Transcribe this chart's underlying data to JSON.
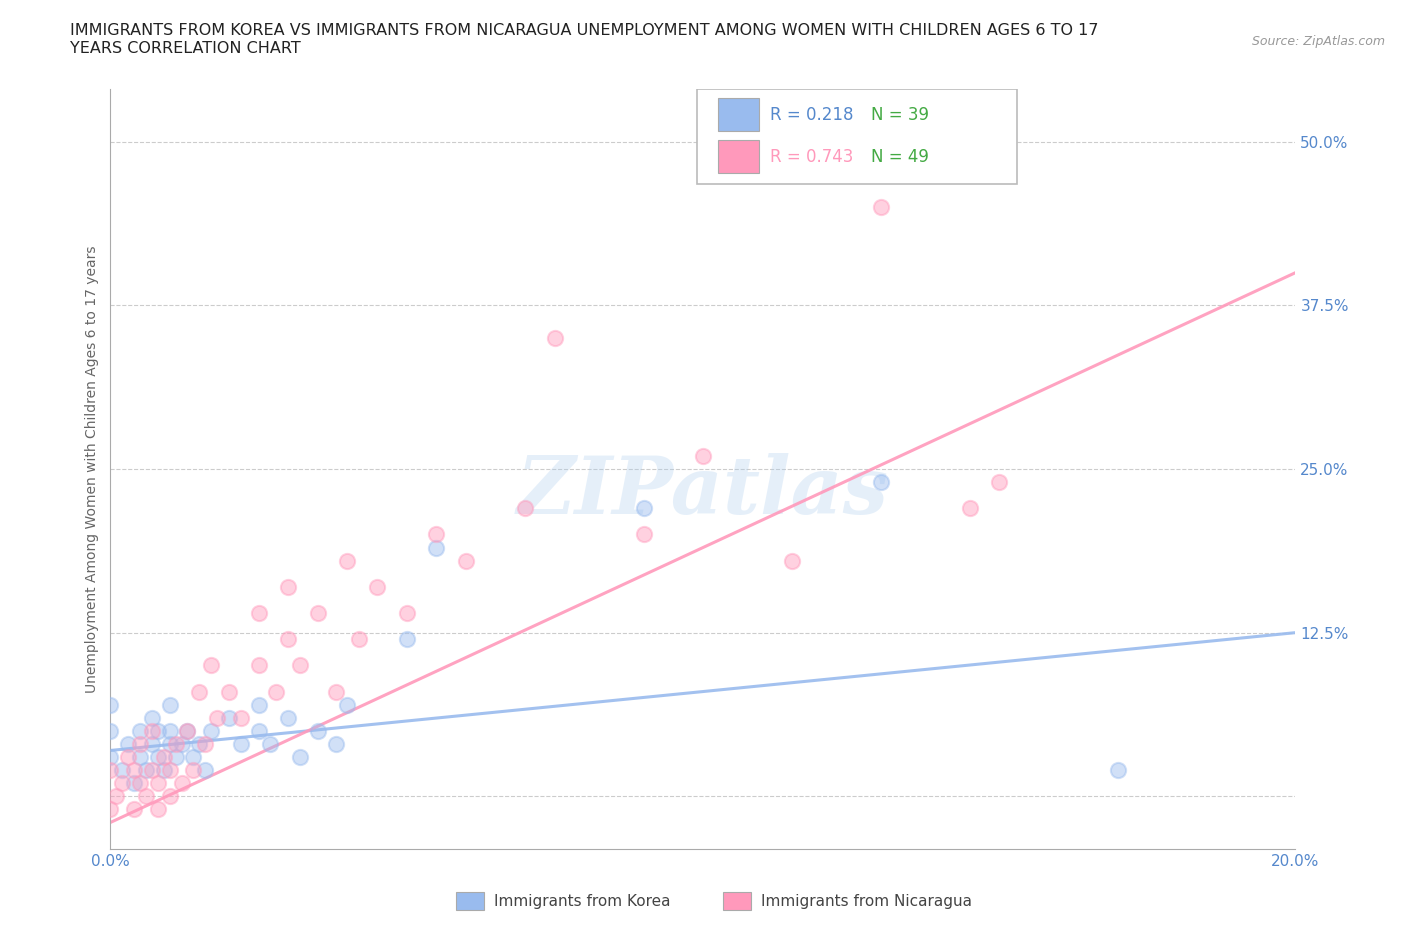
{
  "title_line1": "IMMIGRANTS FROM KOREA VS IMMIGRANTS FROM NICARAGUA UNEMPLOYMENT AMONG WOMEN WITH CHILDREN AGES 6 TO 17",
  "title_line2": "YEARS CORRELATION CHART",
  "source_text": "Source: ZipAtlas.com",
  "ylabel": "Unemployment Among Women with Children Ages 6 to 17 years",
  "xlim": [
    0.0,
    0.2
  ],
  "ylim": [
    -0.04,
    0.54
  ],
  "yticks": [
    0.0,
    0.125,
    0.25,
    0.375,
    0.5
  ],
  "ytick_labels": [
    "",
    "12.5%",
    "25.0%",
    "37.5%",
    "50.0%"
  ],
  "xticks": [
    0.0,
    0.05,
    0.1,
    0.15,
    0.2
  ],
  "xtick_labels": [
    "0.0%",
    "",
    "",
    "",
    "20.0%"
  ],
  "korea_color": "#99BBEE",
  "nicaragua_color": "#FF99BB",
  "korea_R": "0.218",
  "korea_N": "39",
  "nicaragua_R": "0.743",
  "nicaragua_N": "49",
  "watermark": "ZIPatlas",
  "korea_scatter_x": [
    0.0,
    0.0,
    0.0,
    0.002,
    0.003,
    0.004,
    0.005,
    0.005,
    0.006,
    0.007,
    0.007,
    0.008,
    0.008,
    0.009,
    0.01,
    0.01,
    0.01,
    0.011,
    0.012,
    0.013,
    0.014,
    0.015,
    0.016,
    0.017,
    0.02,
    0.022,
    0.025,
    0.025,
    0.027,
    0.03,
    0.032,
    0.035,
    0.038,
    0.04,
    0.05,
    0.055,
    0.09,
    0.13,
    0.17
  ],
  "korea_scatter_y": [
    0.03,
    0.05,
    0.07,
    0.02,
    0.04,
    0.01,
    0.03,
    0.05,
    0.02,
    0.04,
    0.06,
    0.03,
    0.05,
    0.02,
    0.04,
    0.05,
    0.07,
    0.03,
    0.04,
    0.05,
    0.03,
    0.04,
    0.02,
    0.05,
    0.06,
    0.04,
    0.05,
    0.07,
    0.04,
    0.06,
    0.03,
    0.05,
    0.04,
    0.07,
    0.12,
    0.19,
    0.22,
    0.24,
    0.02
  ],
  "nicaragua_scatter_x": [
    0.0,
    0.0,
    0.001,
    0.002,
    0.003,
    0.004,
    0.004,
    0.005,
    0.005,
    0.006,
    0.007,
    0.007,
    0.008,
    0.008,
    0.009,
    0.01,
    0.01,
    0.011,
    0.012,
    0.013,
    0.014,
    0.015,
    0.016,
    0.017,
    0.018,
    0.02,
    0.022,
    0.025,
    0.025,
    0.028,
    0.03,
    0.03,
    0.032,
    0.035,
    0.038,
    0.04,
    0.042,
    0.045,
    0.05,
    0.055,
    0.06,
    0.07,
    0.075,
    0.09,
    0.1,
    0.115,
    0.13,
    0.145,
    0.15
  ],
  "nicaragua_scatter_y": [
    -0.01,
    0.02,
    0.0,
    0.01,
    0.03,
    -0.01,
    0.02,
    0.01,
    0.04,
    0.0,
    0.02,
    0.05,
    -0.01,
    0.01,
    0.03,
    0.0,
    0.02,
    0.04,
    0.01,
    0.05,
    0.02,
    0.08,
    0.04,
    0.1,
    0.06,
    0.08,
    0.06,
    0.1,
    0.14,
    0.08,
    0.12,
    0.16,
    0.1,
    0.14,
    0.08,
    0.18,
    0.12,
    0.16,
    0.14,
    0.2,
    0.18,
    0.22,
    0.35,
    0.2,
    0.26,
    0.18,
    0.45,
    0.22,
    0.24
  ],
  "korea_trend_x": [
    0.0,
    0.2
  ],
  "korea_trend_y": [
    0.035,
    0.125
  ],
  "nicaragua_trend_x": [
    0.0,
    0.2
  ],
  "nicaragua_trend_y": [
    -0.02,
    0.4
  ],
  "background_color": "#FFFFFF",
  "grid_color": "#CCCCCC",
  "tick_color": "#5588CC",
  "title_fontsize": 11.5,
  "axis_label_fontsize": 10,
  "tick_fontsize": 11,
  "legend_fontsize": 12,
  "scatter_size": 120,
  "scatter_alpha": 0.45,
  "scatter_linewidth": 1.5
}
